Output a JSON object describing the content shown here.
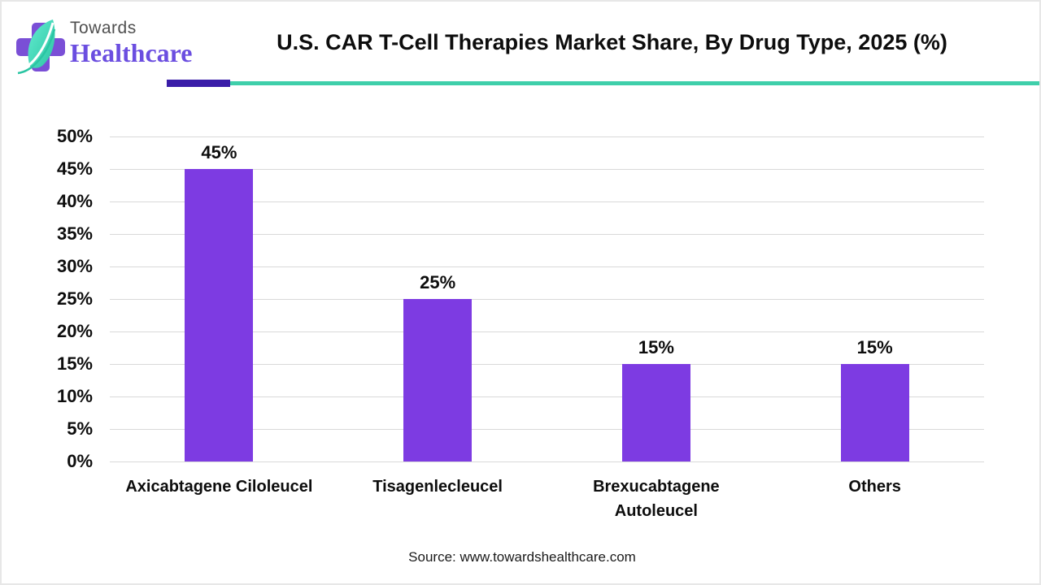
{
  "header": {
    "brand": {
      "line1": "Towards",
      "line2": "Healthcare"
    },
    "title": "U.S. CAR T-Cell Therapies Market Share, By Drug Type, 2025 (%)"
  },
  "chart_data": {
    "type": "bar",
    "title": "U.S. CAR T-Cell Therapies Market Share, By Drug Type, 2025 (%)",
    "categories": [
      "Axicabtagene Ciloleucel",
      "Tisagenlecleucel",
      "Brexucabtagene Autoleucel",
      "Others"
    ],
    "values": [
      45,
      25,
      15,
      15
    ],
    "data_labels": [
      "45%",
      "25%",
      "15%",
      "15%"
    ],
    "category_label_lines": [
      [
        "Axicabtagene Ciloleucel"
      ],
      [
        "Tisagenlecleucel"
      ],
      [
        "Brexucabtagene",
        "Autoleucel"
      ],
      [
        "Others"
      ]
    ],
    "xlabel": "",
    "ylabel": "",
    "ylim": [
      0,
      50
    ],
    "ytick_step": 5,
    "ytick_suffix": "%",
    "grid": true,
    "legend": false,
    "bar_color": "#7d3be2"
  },
  "footer": {
    "source": "Source: www.towardshealthcare.com"
  },
  "colors": {
    "bar": "#7d3be2",
    "accent_indigo": "#3a1da8",
    "accent_teal": "#3fcfaa",
    "gridline": "#d9d9d9",
    "text": "#0d0d0d",
    "logo_purple": "#7a4fd6",
    "logo_teal": "#35cda9"
  }
}
